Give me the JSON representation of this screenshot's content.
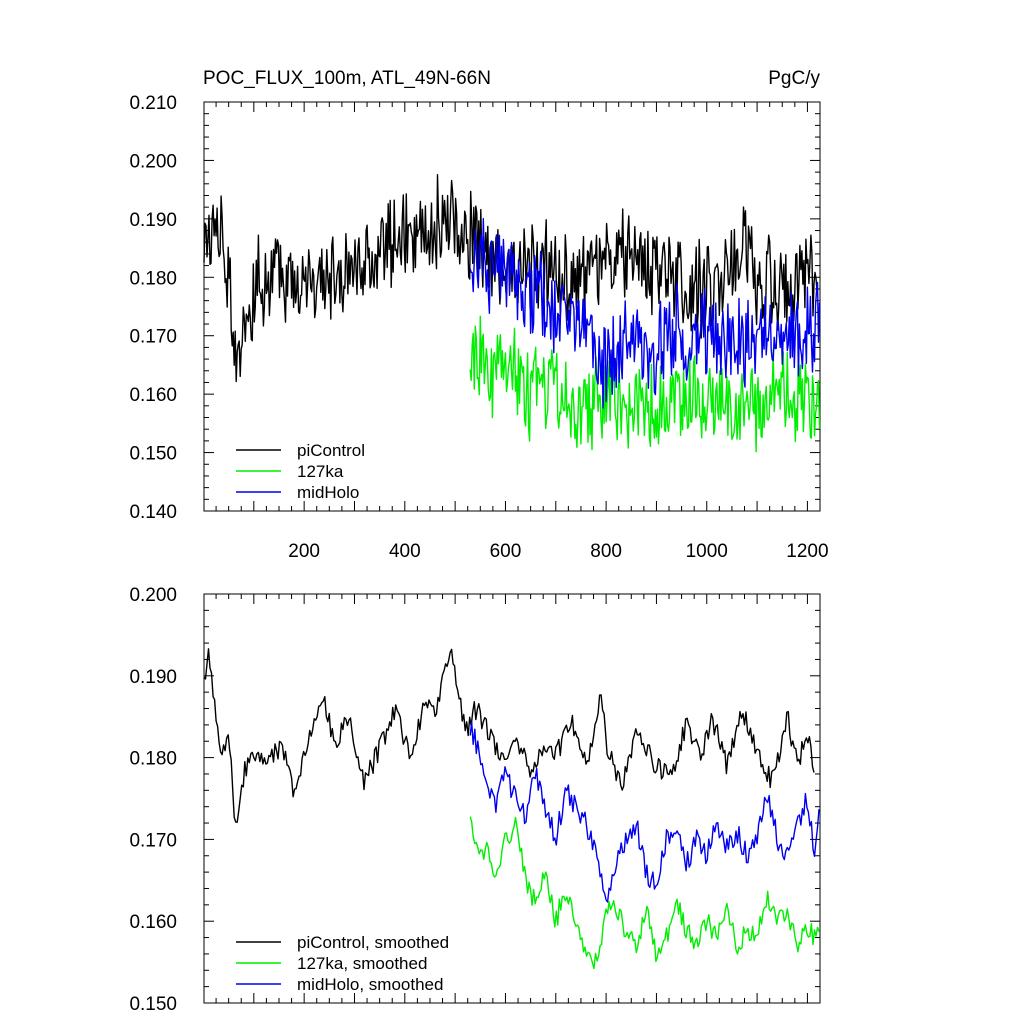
{
  "chart_data": [
    {
      "type": "line",
      "title": "POC_FLUX_100m, ATL_49N-66N",
      "units": "PgC/y",
      "xlim": [
        1,
        1225
      ],
      "ylim": [
        0.14,
        0.21
      ],
      "x_ticks": [
        200,
        400,
        600,
        800,
        1000,
        1200
      ],
      "y_ticks": [
        0.14,
        0.15,
        0.16,
        0.17,
        0.18,
        0.19,
        0.2,
        0.21
      ],
      "y_tick_labels": [
        "0.140",
        "0.150",
        "0.160",
        "0.170",
        "0.180",
        "0.190",
        "0.200",
        "0.210"
      ],
      "legend_position": "bottom-left",
      "series": [
        {
          "name": "piControl",
          "color": "#000000",
          "x_range": [
            1,
            1220
          ],
          "x": [
            1,
            25,
            50,
            65,
            100,
            150,
            200,
            250,
            300,
            350,
            400,
            450,
            490,
            525,
            560,
            600,
            650,
            700,
            750,
            800,
            850,
            900,
            950,
            1000,
            1050,
            1075,
            1100,
            1150,
            1200,
            1220
          ],
          "y": [
            0.184,
            0.19,
            0.18,
            0.166,
            0.178,
            0.181,
            0.18,
            0.18,
            0.182,
            0.184,
            0.187,
            0.188,
            0.19,
            0.187,
            0.184,
            0.181,
            0.183,
            0.181,
            0.18,
            0.183,
            0.185,
            0.181,
            0.18,
            0.178,
            0.181,
            0.187,
            0.18,
            0.179,
            0.181,
            0.178
          ]
        },
        {
          "name": "127ka",
          "color": "#00ee00",
          "x_range": [
            530,
            1225
          ],
          "x": [
            530,
            560,
            600,
            650,
            700,
            750,
            800,
            850,
            900,
            950,
            1000,
            1050,
            1100,
            1150,
            1200,
            1225
          ],
          "y": [
            0.168,
            0.164,
            0.166,
            0.16,
            0.161,
            0.156,
            0.161,
            0.158,
            0.157,
            0.159,
            0.16,
            0.158,
            0.159,
            0.161,
            0.159,
            0.158
          ]
        },
        {
          "name": "midHolo",
          "color": "#0000ee",
          "x_range": [
            530,
            1225
          ],
          "x": [
            530,
            560,
            600,
            650,
            700,
            750,
            800,
            850,
            900,
            950,
            1000,
            1050,
            1100,
            1150,
            1200,
            1225
          ],
          "y": [
            0.183,
            0.181,
            0.18,
            0.178,
            0.175,
            0.172,
            0.165,
            0.17,
            0.168,
            0.171,
            0.17,
            0.169,
            0.171,
            0.17,
            0.171,
            0.173
          ]
        }
      ]
    },
    {
      "type": "line",
      "xlim": [
        1,
        1225
      ],
      "ylim": [
        0.15,
        0.2
      ],
      "y_ticks": [
        0.15,
        0.16,
        0.17,
        0.18,
        0.19,
        0.2
      ],
      "y_tick_labels": [
        "0.150",
        "0.160",
        "0.170",
        "0.180",
        "0.190",
        "0.200"
      ],
      "legend_position": "bottom-left",
      "series": [
        {
          "name": "piControl, smoothed",
          "color": "#000000",
          "x": [
            1,
            10,
            20,
            35,
            50,
            65,
            80,
            100,
            130,
            160,
            180,
            210,
            240,
            260,
            290,
            320,
            350,
            380,
            410,
            440,
            460,
            490,
            520,
            540,
            560,
            580,
            600,
            620,
            650,
            680,
            700,
            730,
            760,
            790,
            800,
            830,
            860,
            880,
            900,
            930,
            960,
            990,
            1010,
            1040,
            1070,
            1100,
            1130,
            1160,
            1180,
            1200,
            1215
          ],
          "y": [
            0.189,
            0.193,
            0.187,
            0.181,
            0.183,
            0.17,
            0.178,
            0.18,
            0.18,
            0.181,
            0.176,
            0.183,
            0.187,
            0.182,
            0.185,
            0.177,
            0.181,
            0.186,
            0.18,
            0.187,
            0.185,
            0.193,
            0.183,
            0.186,
            0.184,
            0.181,
            0.18,
            0.183,
            0.178,
            0.182,
            0.18,
            0.185,
            0.179,
            0.188,
            0.182,
            0.176,
            0.183,
            0.181,
            0.179,
            0.178,
            0.184,
            0.18,
            0.185,
            0.179,
            0.186,
            0.181,
            0.177,
            0.185,
            0.179,
            0.183,
            0.178
          ]
        },
        {
          "name": "127ka, smoothed",
          "color": "#00ee00",
          "x": [
            530,
            545,
            560,
            580,
            600,
            620,
            640,
            660,
            680,
            700,
            720,
            740,
            760,
            780,
            800,
            820,
            840,
            860,
            880,
            900,
            920,
            940,
            960,
            980,
            1000,
            1020,
            1040,
            1060,
            1080,
            1100,
            1120,
            1140,
            1160,
            1180,
            1200,
            1215,
            1225
          ],
          "y": [
            0.173,
            0.168,
            0.169,
            0.166,
            0.17,
            0.172,
            0.165,
            0.162,
            0.166,
            0.16,
            0.164,
            0.159,
            0.157,
            0.155,
            0.161,
            0.162,
            0.158,
            0.157,
            0.161,
            0.156,
            0.158,
            0.162,
            0.159,
            0.157,
            0.16,
            0.158,
            0.161,
            0.157,
            0.159,
            0.158,
            0.163,
            0.16,
            0.161,
            0.157,
            0.159,
            0.158,
            0.158
          ]
        },
        {
          "name": "midHolo, smoothed",
          "color": "#0000ee",
          "x": [
            530,
            545,
            560,
            580,
            600,
            620,
            640,
            660,
            680,
            700,
            720,
            740,
            760,
            780,
            800,
            820,
            840,
            860,
            880,
            900,
            920,
            940,
            960,
            980,
            1000,
            1020,
            1040,
            1060,
            1080,
            1100,
            1120,
            1140,
            1160,
            1180,
            1200,
            1215,
            1225
          ],
          "y": [
            0.184,
            0.181,
            0.177,
            0.174,
            0.178,
            0.175,
            0.173,
            0.178,
            0.174,
            0.17,
            0.176,
            0.174,
            0.172,
            0.168,
            0.163,
            0.167,
            0.17,
            0.172,
            0.166,
            0.164,
            0.17,
            0.172,
            0.167,
            0.17,
            0.168,
            0.172,
            0.169,
            0.171,
            0.168,
            0.17,
            0.176,
            0.17,
            0.168,
            0.172,
            0.175,
            0.168,
            0.176
          ]
        }
      ]
    }
  ]
}
